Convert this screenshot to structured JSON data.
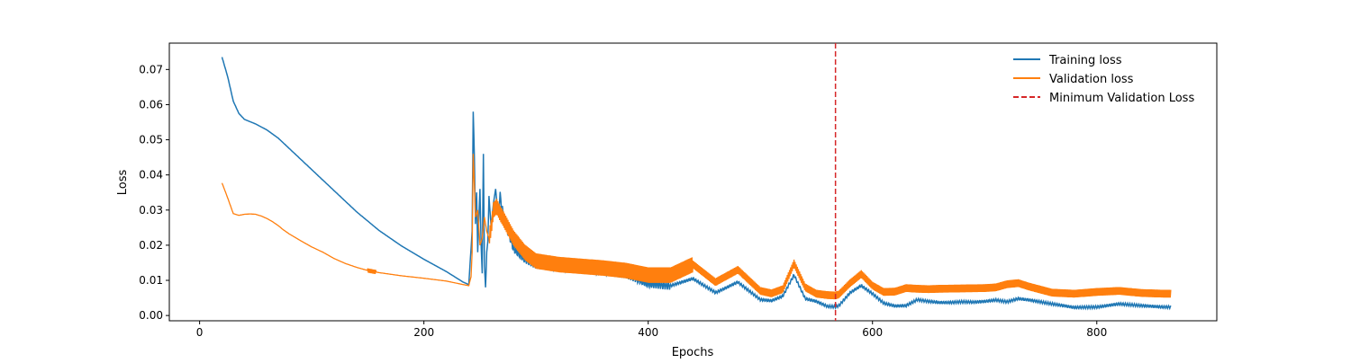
{
  "chart_data": {
    "type": "line",
    "title": "",
    "xlabel": "Epochs",
    "ylabel": "Loss",
    "xlim": [
      -27,
      907
    ],
    "ylim": [
      -0.0015,
      0.0775
    ],
    "xticks": [
      0,
      200,
      400,
      600,
      800
    ],
    "yticks": [
      0.0,
      0.01,
      0.02,
      0.03,
      0.04,
      0.05,
      0.06,
      0.07
    ],
    "ytick_labels": [
      "0.00",
      "0.01",
      "0.02",
      "0.03",
      "0.04",
      "0.05",
      "0.06",
      "0.07"
    ],
    "grid": false,
    "legend_position": "top-right",
    "min_val_epoch": 567,
    "series": [
      {
        "name": "Training loss",
        "color": "#1f77b4",
        "x": [
          20,
          25,
          30,
          35,
          40,
          50,
          60,
          70,
          80,
          90,
          100,
          120,
          140,
          160,
          180,
          200,
          220,
          235,
          240,
          243,
          244,
          245,
          246,
          247,
          248,
          249,
          250,
          251,
          252,
          253,
          254,
          255,
          256,
          257,
          258,
          260,
          262,
          264,
          266,
          268,
          270,
          272,
          275,
          280,
          290,
          300,
          320,
          340,
          360,
          380,
          400,
          420,
          440,
          460,
          480,
          500,
          510,
          520,
          530,
          540,
          550,
          560,
          567,
          570,
          580,
          590,
          600,
          610,
          620,
          630,
          640,
          650,
          660,
          670,
          680,
          690,
          700,
          710,
          720,
          730,
          740,
          760,
          780,
          800,
          820,
          840,
          860,
          866
        ],
        "values": [
          0.0735,
          0.068,
          0.061,
          0.0575,
          0.0558,
          0.0545,
          0.0528,
          0.0505,
          0.0475,
          0.0445,
          0.0415,
          0.0355,
          0.0295,
          0.0242,
          0.0198,
          0.016,
          0.0125,
          0.0095,
          0.0088,
          0.024,
          0.058,
          0.045,
          0.026,
          0.035,
          0.018,
          0.028,
          0.036,
          0.02,
          0.012,
          0.046,
          0.014,
          0.008,
          0.018,
          0.021,
          0.034,
          0.025,
          0.032,
          0.036,
          0.028,
          0.034,
          0.03,
          0.027,
          0.024,
          0.019,
          0.016,
          0.0145,
          0.0138,
          0.0132,
          0.0125,
          0.0118,
          0.009,
          0.0085,
          0.0105,
          0.0065,
          0.0095,
          0.0045,
          0.0042,
          0.0055,
          0.0115,
          0.0048,
          0.004,
          0.0026,
          0.0025,
          0.0028,
          0.0065,
          0.0085,
          0.0062,
          0.0035,
          0.0027,
          0.0028,
          0.0045,
          0.004,
          0.0037,
          0.0037,
          0.0039,
          0.0038,
          0.004,
          0.0044,
          0.0039,
          0.0048,
          0.0044,
          0.0033,
          0.0023,
          0.0024,
          0.0033,
          0.0028,
          0.0024,
          0.0024
        ]
      },
      {
        "name": "Validation loss",
        "color": "#ff7f0e",
        "x": [
          20,
          25,
          30,
          35,
          40,
          45,
          50,
          55,
          60,
          65,
          70,
          75,
          80,
          90,
          100,
          110,
          120,
          130,
          140,
          150,
          160,
          180,
          200,
          220,
          235,
          240,
          242,
          243,
          244,
          246,
          248,
          250,
          252,
          254,
          256,
          258,
          260,
          262,
          265,
          268,
          270,
          275,
          280,
          290,
          300,
          320,
          340,
          360,
          380,
          400,
          420,
          440,
          460,
          480,
          500,
          510,
          520,
          530,
          540,
          550,
          560,
          567,
          570,
          580,
          590,
          600,
          610,
          620,
          630,
          640,
          650,
          660,
          680,
          700,
          710,
          720,
          730,
          740,
          760,
          780,
          800,
          820,
          840,
          860,
          866
        ],
        "values": [
          0.0377,
          0.0335,
          0.029,
          0.0285,
          0.0288,
          0.0289,
          0.0288,
          0.0283,
          0.0276,
          0.0267,
          0.0256,
          0.0243,
          0.0232,
          0.0213,
          0.0195,
          0.018,
          0.0162,
          0.0148,
          0.0137,
          0.0128,
          0.0122,
          0.0113,
          0.0106,
          0.0098,
          0.0088,
          0.0085,
          0.011,
          0.018,
          0.046,
          0.028,
          0.03,
          0.02,
          0.022,
          0.028,
          0.024,
          0.022,
          0.025,
          0.03,
          0.031,
          0.029,
          0.028,
          0.025,
          0.022,
          0.018,
          0.0155,
          0.0145,
          0.014,
          0.0135,
          0.0128,
          0.0115,
          0.0115,
          0.0145,
          0.0095,
          0.013,
          0.007,
          0.0063,
          0.0075,
          0.0148,
          0.008,
          0.0062,
          0.0058,
          0.0057,
          0.006,
          0.0092,
          0.0118,
          0.0085,
          0.0067,
          0.0068,
          0.0078,
          0.0076,
          0.0075,
          0.0076,
          0.0077,
          0.0078,
          0.008,
          0.0089,
          0.0092,
          0.0082,
          0.0065,
          0.0062,
          0.0067,
          0.007,
          0.0064,
          0.0062,
          0.0062
        ],
        "noise_amplitude": 0.0022
      }
    ],
    "reference_line": {
      "name": "Minimum Validation Loss",
      "color": "#d62728",
      "style": "dashed",
      "x": 567
    }
  }
}
